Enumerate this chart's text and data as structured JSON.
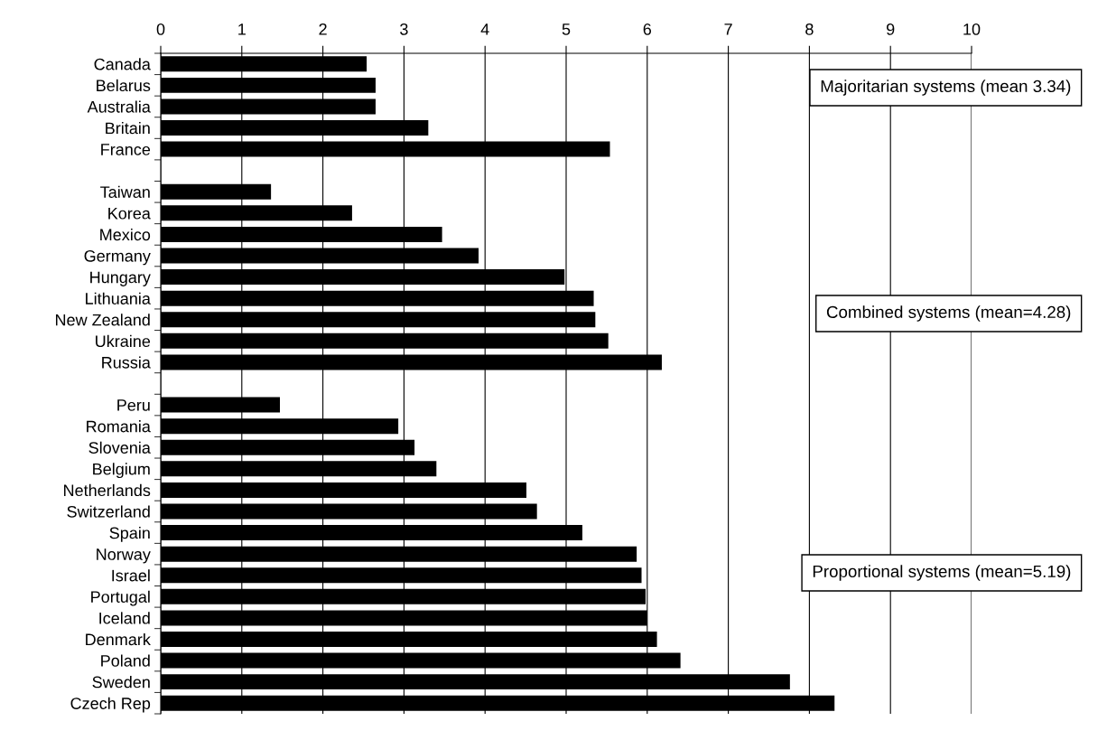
{
  "chart_data": {
    "type": "bar",
    "orientation": "horizontal",
    "categories": [
      "Canada",
      "Belarus",
      "Australia",
      "Britain",
      "France",
      null,
      "Taiwan",
      "Korea",
      "Mexico",
      "Germany",
      "Hungary",
      "Lithuania",
      "New Zealand",
      "Ukraine",
      "Russia",
      null,
      "Peru",
      "Romania",
      "Slovenia",
      "Belgium",
      "Netherlands",
      "Switzerland",
      "Spain",
      "Norway",
      "Israel",
      "Portugal",
      "Iceland",
      "Denmark",
      "Poland",
      "Sweden",
      "Czech Rep"
    ],
    "values": [
      2.54,
      2.65,
      2.65,
      3.3,
      5.54,
      null,
      1.36,
      2.36,
      3.47,
      3.92,
      4.98,
      5.34,
      5.36,
      5.52,
      6.18,
      null,
      1.47,
      2.93,
      3.13,
      3.4,
      4.51,
      4.64,
      5.2,
      5.87,
      5.93,
      5.98,
      6.0,
      6.12,
      6.41,
      7.76,
      8.31
    ],
    "color": "#000000",
    "xlim": [
      0,
      10
    ],
    "xticks": [
      0,
      1,
      2,
      3,
      4,
      5,
      6,
      7,
      8,
      9,
      10
    ],
    "grid": "x",
    "annotations": [
      "Majoritarian systems (mean 3.34)",
      "Combined systems (mean=4.28)",
      "Proportional systems (mean=5.19)"
    ]
  }
}
